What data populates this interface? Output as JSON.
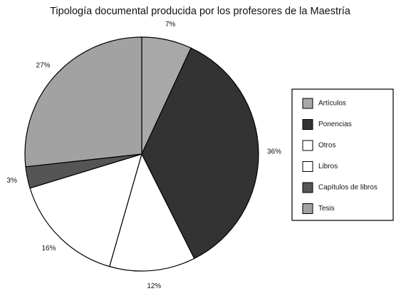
{
  "chart_data": {
    "type": "pie",
    "title": "Tipología documental producida por los profesores de la Maestría",
    "categories": [
      "Artículos",
      "Ponencias",
      "Otros",
      "Libros",
      "Capítulos de libros",
      "Tesis"
    ],
    "values": [
      7,
      36,
      12,
      16,
      3,
      27
    ],
    "value_labels": [
      "7%",
      "36%",
      "12%",
      "16%",
      "3%",
      "27%"
    ],
    "colors": [
      "#a8a8a8",
      "#333333",
      "#ffffff",
      "#ffffff",
      "#555555",
      "#a2a2a2"
    ],
    "legend": "right"
  }
}
